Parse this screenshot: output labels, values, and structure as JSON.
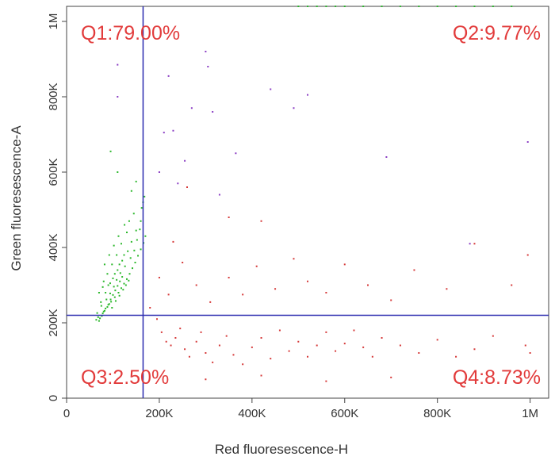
{
  "chart_data": {
    "type": "scatter",
    "title": "",
    "xlabel": "Red fluoresescence-H",
    "ylabel": "Green fluoresescence-A",
    "xlim": [
      0,
      1040000
    ],
    "ylim": [
      0,
      1040000
    ],
    "x_ticks": [
      0,
      200000,
      400000,
      600000,
      800000,
      1000000
    ],
    "x_tick_labels": [
      "0",
      "200K",
      "400K",
      "600K",
      "800K",
      "1M"
    ],
    "y_ticks": [
      0,
      200000,
      400000,
      600000,
      800000,
      1000000
    ],
    "y_tick_labels": [
      "0",
      "200K",
      "400K",
      "600K",
      "800K",
      "1M"
    ],
    "grid": false,
    "gate": {
      "x": 165000,
      "y": 220000
    },
    "quadrants": [
      {
        "id": "Q1",
        "label": "Q1:79.00%",
        "position": "top-left"
      },
      {
        "id": "Q2",
        "label": "Q2:9.77%",
        "position": "top-right"
      },
      {
        "id": "Q3",
        "label": "Q3:2.50%",
        "position": "bottom-left"
      },
      {
        "id": "Q4",
        "label": "Q4:8.73%",
        "position": "bottom-right"
      }
    ],
    "series": [
      {
        "color": "#2db82d",
        "points": [
          [
            72000,
            212000
          ],
          [
            78000,
            225000
          ],
          [
            84000,
            238000
          ],
          [
            90000,
            248000
          ],
          [
            95000,
            262000
          ],
          [
            100000,
            274000
          ],
          [
            105000,
            286000
          ],
          [
            110000,
            298000
          ],
          [
            115000,
            310000
          ],
          [
            120000,
            322000
          ],
          [
            80000,
            230000
          ],
          [
            88000,
            242000
          ],
          [
            96000,
            256000
          ],
          [
            104000,
            268000
          ],
          [
            112000,
            280000
          ],
          [
            118000,
            292000
          ],
          [
            124000,
            304000
          ],
          [
            130000,
            316000
          ],
          [
            136000,
            330000
          ],
          [
            142000,
            345000
          ],
          [
            148000,
            360000
          ],
          [
            154000,
            378000
          ],
          [
            160000,
            395000
          ],
          [
            166000,
            412000
          ],
          [
            170000,
            430000
          ],
          [
            70000,
            205000
          ],
          [
            76000,
            218000
          ],
          [
            82000,
            232000
          ],
          [
            92000,
            250000
          ],
          [
            98000,
            240000
          ],
          [
            106000,
            258000
          ],
          [
            114000,
            272000
          ],
          [
            122000,
            288000
          ],
          [
            128000,
            300000
          ],
          [
            134000,
            312000
          ],
          [
            86000,
            262000
          ],
          [
            94000,
            278000
          ],
          [
            102000,
            296000
          ],
          [
            108000,
            314000
          ],
          [
            116000,
            332000
          ],
          [
            126000,
            350000
          ],
          [
            138000,
            372000
          ],
          [
            146000,
            392000
          ],
          [
            152000,
            420000
          ],
          [
            158000,
            448000
          ],
          [
            90000,
            300000
          ],
          [
            100000,
            318000
          ],
          [
            110000,
            340000
          ],
          [
            120000,
            365000
          ],
          [
            132000,
            390000
          ],
          [
            140000,
            415000
          ],
          [
            150000,
            445000
          ],
          [
            160000,
            470000
          ],
          [
            162000,
            505000
          ],
          [
            168000,
            535000
          ],
          [
            130000,
            440000
          ],
          [
            118000,
            410000
          ],
          [
            108000,
            380000
          ],
          [
            98000,
            355000
          ],
          [
            88000,
            330000
          ],
          [
            75000,
            245000
          ],
          [
            68000,
            215000
          ],
          [
            64000,
            208000
          ],
          [
            66000,
            226000
          ],
          [
            74000,
            255000
          ],
          [
            84000,
            280000
          ],
          [
            94000,
            305000
          ],
          [
            104000,
            330000
          ],
          [
            114000,
            355000
          ],
          [
            124000,
            380000
          ],
          [
            145000,
            490000
          ],
          [
            135000,
            470000
          ],
          [
            125000,
            460000
          ],
          [
            112000,
            430000
          ],
          [
            102000,
            405000
          ],
          [
            92000,
            380000
          ],
          [
            82000,
            355000
          ],
          [
            80000,
            310000
          ],
          [
            70000,
            280000
          ],
          [
            78000,
            295000
          ],
          [
            95000,
            655000
          ],
          [
            110000,
            600000
          ],
          [
            140000,
            550000
          ],
          [
            165000,
            520000
          ],
          [
            150000,
            575000
          ],
          [
            520000,
            1040000
          ],
          [
            560000,
            1040000
          ],
          [
            600000,
            1040000
          ],
          [
            640000,
            1040000
          ],
          [
            680000,
            1040000
          ],
          [
            720000,
            1040000
          ],
          [
            760000,
            1040000
          ],
          [
            800000,
            1040000
          ],
          [
            840000,
            1040000
          ],
          [
            880000,
            1040000
          ],
          [
            920000,
            1040000
          ],
          [
            960000,
            1040000
          ],
          [
            500000,
            1040000
          ],
          [
            540000,
            1040000
          ],
          [
            580000,
            1040000
          ]
        ]
      },
      {
        "color": "#d63a3a",
        "points": [
          [
            180000,
            240000
          ],
          [
            195000,
            210000
          ],
          [
            205000,
            175000
          ],
          [
            215000,
            150000
          ],
          [
            225000,
            140000
          ],
          [
            235000,
            160000
          ],
          [
            245000,
            185000
          ],
          [
            255000,
            130000
          ],
          [
            265000,
            110000
          ],
          [
            280000,
            150000
          ],
          [
            290000,
            175000
          ],
          [
            300000,
            120000
          ],
          [
            315000,
            95000
          ],
          [
            330000,
            140000
          ],
          [
            345000,
            165000
          ],
          [
            360000,
            115000
          ],
          [
            380000,
            90000
          ],
          [
            400000,
            135000
          ],
          [
            420000,
            160000
          ],
          [
            440000,
            105000
          ],
          [
            460000,
            180000
          ],
          [
            480000,
            125000
          ],
          [
            500000,
            150000
          ],
          [
            520000,
            110000
          ],
          [
            540000,
            140000
          ],
          [
            560000,
            175000
          ],
          [
            580000,
            125000
          ],
          [
            600000,
            145000
          ],
          [
            620000,
            180000
          ],
          [
            640000,
            135000
          ],
          [
            660000,
            110000
          ],
          [
            680000,
            160000
          ],
          [
            720000,
            140000
          ],
          [
            760000,
            120000
          ],
          [
            800000,
            155000
          ],
          [
            840000,
            110000
          ],
          [
            880000,
            130000
          ],
          [
            920000,
            165000
          ],
          [
            990000,
            140000
          ],
          [
            1000000,
            120000
          ],
          [
            200000,
            320000
          ],
          [
            220000,
            275000
          ],
          [
            250000,
            360000
          ],
          [
            280000,
            300000
          ],
          [
            310000,
            255000
          ],
          [
            350000,
            320000
          ],
          [
            380000,
            275000
          ],
          [
            410000,
            350000
          ],
          [
            450000,
            290000
          ],
          [
            490000,
            370000
          ],
          [
            520000,
            310000
          ],
          [
            560000,
            280000
          ],
          [
            600000,
            355000
          ],
          [
            650000,
            300000
          ],
          [
            700000,
            260000
          ],
          [
            750000,
            340000
          ],
          [
            820000,
            290000
          ],
          [
            880000,
            410000
          ],
          [
            960000,
            300000
          ],
          [
            995000,
            380000
          ],
          [
            300000,
            50000
          ],
          [
            420000,
            60000
          ],
          [
            560000,
            45000
          ],
          [
            700000,
            55000
          ],
          [
            860000,
            40000
          ],
          [
            230000,
            415000
          ],
          [
            350000,
            480000
          ],
          [
            420000,
            470000
          ],
          [
            260000,
            560000
          ]
        ]
      },
      {
        "color": "#8b3ec4",
        "points": [
          [
            110000,
            885000
          ],
          [
            110000,
            800000
          ],
          [
            220000,
            855000
          ],
          [
            210000,
            705000
          ],
          [
            230000,
            710000
          ],
          [
            240000,
            570000
          ],
          [
            255000,
            630000
          ],
          [
            300000,
            920000
          ],
          [
            305000,
            880000
          ],
          [
            315000,
            760000
          ],
          [
            365000,
            650000
          ],
          [
            330000,
            540000
          ],
          [
            440000,
            820000
          ],
          [
            490000,
            770000
          ],
          [
            520000,
            805000
          ],
          [
            690000,
            640000
          ],
          [
            870000,
            410000
          ],
          [
            995000,
            680000
          ],
          [
            270000,
            770000
          ],
          [
            200000,
            600000
          ]
        ]
      }
    ]
  }
}
